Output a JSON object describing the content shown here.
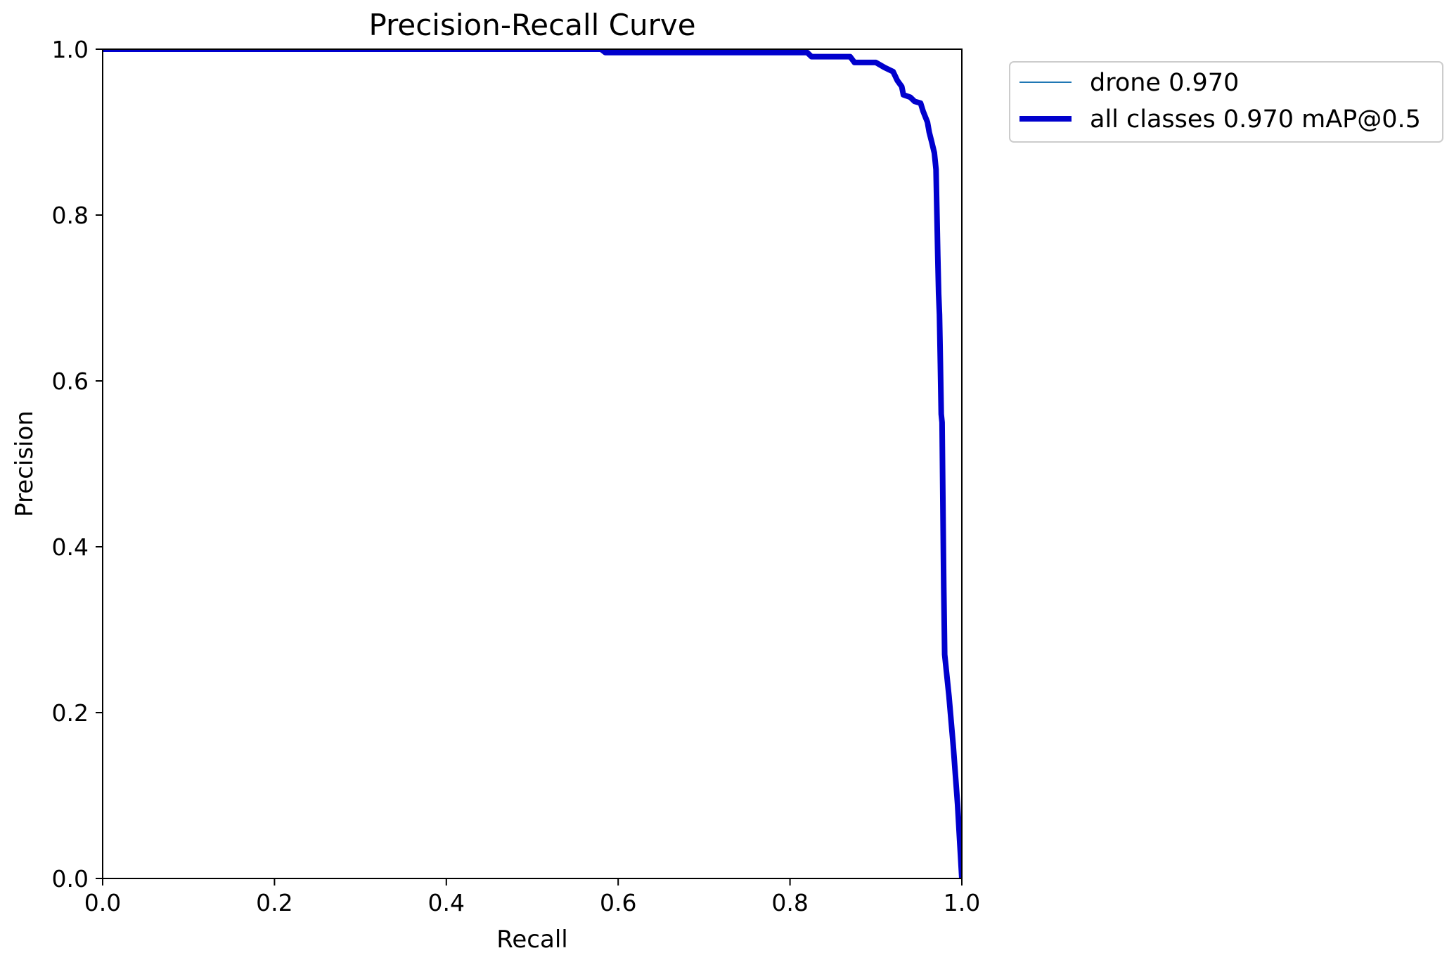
{
  "chart_data": {
    "type": "line",
    "title": "Precision-Recall Curve",
    "xlabel": "Recall",
    "ylabel": "Precision",
    "xlim": [
      0.0,
      1.0
    ],
    "ylim": [
      0.0,
      1.0
    ],
    "xticks": [
      "0.0",
      "0.2",
      "0.4",
      "0.6",
      "0.8",
      "1.0"
    ],
    "yticks": [
      "0.0",
      "0.2",
      "0.4",
      "0.6",
      "0.8",
      "1.0"
    ],
    "grid": false,
    "legend_position": "outside-top-right",
    "series": [
      {
        "name": "drone 0.970",
        "color": "#1f77b4",
        "points": [
          [
            0.0,
            1.0
          ],
          [
            0.58,
            1.0
          ],
          [
            0.585,
            0.996
          ],
          [
            0.7,
            0.996
          ],
          [
            0.82,
            0.996
          ],
          [
            0.825,
            0.991
          ],
          [
            0.87,
            0.991
          ],
          [
            0.875,
            0.984
          ],
          [
            0.9,
            0.984
          ],
          [
            0.91,
            0.978
          ],
          [
            0.92,
            0.973
          ],
          [
            0.925,
            0.962
          ],
          [
            0.93,
            0.955
          ],
          [
            0.932,
            0.945
          ],
          [
            0.94,
            0.942
          ],
          [
            0.945,
            0.937
          ],
          [
            0.952,
            0.935
          ],
          [
            0.955,
            0.925
          ],
          [
            0.96,
            0.912
          ],
          [
            0.962,
            0.9
          ],
          [
            0.965,
            0.888
          ],
          [
            0.968,
            0.875
          ],
          [
            0.97,
            0.855
          ],
          [
            0.971,
            0.8
          ],
          [
            0.972,
            0.75
          ],
          [
            0.973,
            0.705
          ],
          [
            0.974,
            0.68
          ],
          [
            0.975,
            0.62
          ],
          [
            0.976,
            0.56
          ],
          [
            0.977,
            0.55
          ],
          [
            0.978,
            0.45
          ],
          [
            0.979,
            0.35
          ],
          [
            0.98,
            0.27
          ],
          [
            0.985,
            0.22
          ],
          [
            0.99,
            0.16
          ],
          [
            0.995,
            0.09
          ],
          [
            1.0,
            0.0
          ]
        ]
      },
      {
        "name": "all classes 0.970 mAP@0.5",
        "color": "#0000cd",
        "points": [
          [
            0.0,
            1.0
          ],
          [
            0.58,
            1.0
          ],
          [
            0.585,
            0.996
          ],
          [
            0.7,
            0.996
          ],
          [
            0.82,
            0.996
          ],
          [
            0.825,
            0.991
          ],
          [
            0.87,
            0.991
          ],
          [
            0.875,
            0.984
          ],
          [
            0.9,
            0.984
          ],
          [
            0.91,
            0.978
          ],
          [
            0.92,
            0.973
          ],
          [
            0.925,
            0.962
          ],
          [
            0.93,
            0.955
          ],
          [
            0.932,
            0.945
          ],
          [
            0.94,
            0.942
          ],
          [
            0.945,
            0.937
          ],
          [
            0.952,
            0.935
          ],
          [
            0.955,
            0.925
          ],
          [
            0.96,
            0.912
          ],
          [
            0.962,
            0.9
          ],
          [
            0.965,
            0.888
          ],
          [
            0.968,
            0.875
          ],
          [
            0.97,
            0.855
          ],
          [
            0.971,
            0.8
          ],
          [
            0.972,
            0.75
          ],
          [
            0.973,
            0.705
          ],
          [
            0.974,
            0.68
          ],
          [
            0.975,
            0.62
          ],
          [
            0.976,
            0.56
          ],
          [
            0.977,
            0.55
          ],
          [
            0.978,
            0.45
          ],
          [
            0.979,
            0.35
          ],
          [
            0.98,
            0.27
          ],
          [
            0.985,
            0.22
          ],
          [
            0.99,
            0.16
          ],
          [
            0.995,
            0.09
          ],
          [
            1.0,
            0.0
          ]
        ]
      }
    ]
  }
}
